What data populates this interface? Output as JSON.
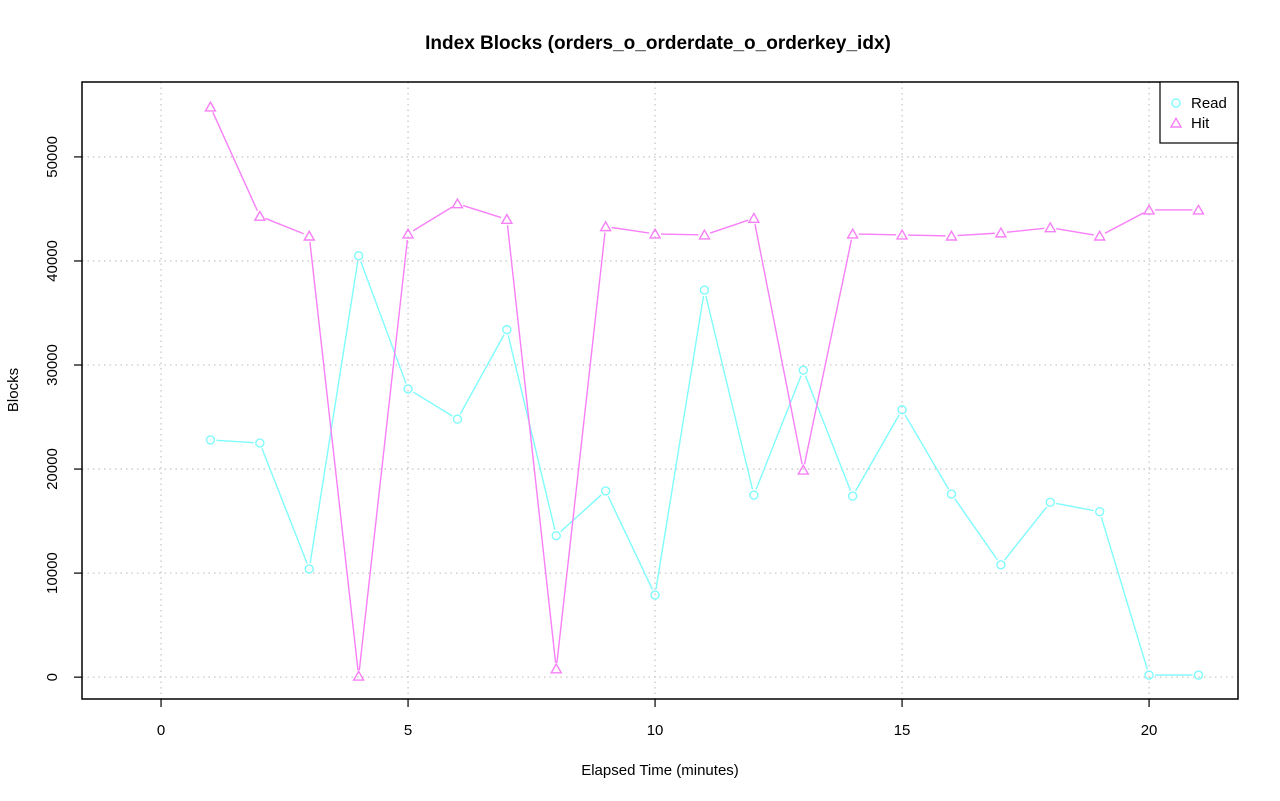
{
  "chart_data": {
    "type": "line",
    "title": "Index Blocks (orders_o_orderdate_o_orderkey_idx)",
    "xlabel": "Elapsed Time (minutes)",
    "ylabel": "Blocks",
    "xlim": [
      -1.6,
      21.8
    ],
    "ylim": [
      -2100,
      57200
    ],
    "x_ticks": [
      0,
      5,
      10,
      15,
      20
    ],
    "y_ticks": [
      0,
      10000,
      20000,
      30000,
      40000,
      50000
    ],
    "grid": true,
    "legend_position": "top-right",
    "x": [
      1,
      2,
      3,
      4,
      5,
      6,
      7,
      8,
      9,
      10,
      11,
      12,
      13,
      14,
      15,
      16,
      17,
      18,
      19,
      20,
      21
    ],
    "series": [
      {
        "name": "Read",
        "color": "#7ffcfc",
        "marker": "circle",
        "values": [
          22800,
          22500,
          10400,
          40500,
          27700,
          24800,
          33400,
          13600,
          17900,
          7900,
          37200,
          17500,
          29500,
          17400,
          25700,
          17600,
          10800,
          16800,
          15900,
          200,
          200
        ]
      },
      {
        "name": "Hit",
        "color": "#f77ff7",
        "marker": "triangle",
        "values": [
          54800,
          44300,
          42400,
          100,
          42600,
          45500,
          44000,
          800,
          43300,
          42600,
          42500,
          44100,
          19900,
          42600,
          42500,
          42400,
          42700,
          43200,
          42400,
          44900,
          44900
        ]
      }
    ]
  }
}
